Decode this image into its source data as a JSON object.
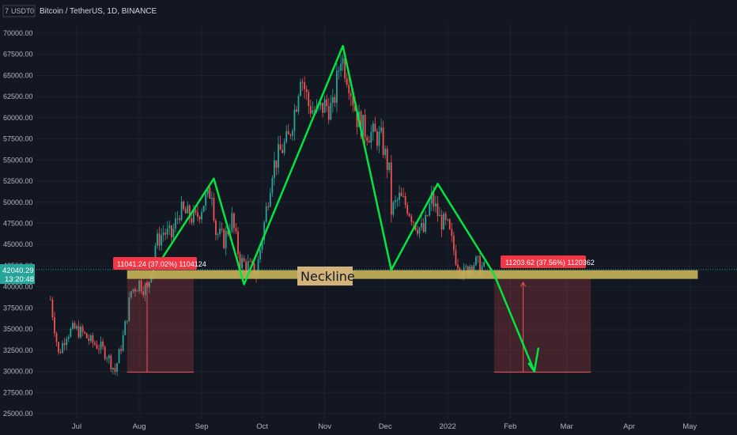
{
  "header": {
    "title": "Bitcoin / TetherUS, 1D, BINANCE",
    "currency_label": "USDT",
    "currency_prefix": "7",
    "currency_suffix": "0"
  },
  "price_tag": {
    "price": "42040.29",
    "countdown": "13:20:48"
  },
  "annotations": {
    "neckline_label": "Neckline",
    "left_box_label": "11041.24 (37.02%) 1104124",
    "right_box_label": "11203.62 (37.56%) 1120362"
  },
  "colors": {
    "background": "#131722",
    "bull": "#26a69a",
    "bear": "#ef5350",
    "pattern_line": "#00e640",
    "neckline": "#c8b45a",
    "target_box": "#ef5350",
    "label_red": "#f23645"
  },
  "chart_data": {
    "type": "candlestick",
    "title": "Bitcoin / TetherUS, 1D, BINANCE",
    "ylim": [
      25000,
      71500
    ],
    "yticks": [
      "70000.00",
      "67500.00",
      "65000.00",
      "62500.00",
      "60000.00",
      "57500.00",
      "55000.00",
      "52500.00",
      "50000.00",
      "47500.00",
      "45000.00",
      "42500.00",
      "40000.00",
      "37500.00",
      "35000.00",
      "32500.00",
      "30000.00",
      "27500.00",
      "25000.00"
    ],
    "xticks": [
      "Jul",
      "Aug",
      "Sep",
      "Oct",
      "Nov",
      "Dec",
      "2022",
      "Feb",
      "Mar",
      "Apr",
      "May"
    ],
    "price_path": [
      [
        "2021-06-18",
        38500
      ],
      [
        "2021-06-22",
        32000
      ],
      [
        "2021-06-26",
        34500
      ],
      [
        "2021-06-30",
        35000
      ],
      [
        "2021-07-04",
        34500
      ],
      [
        "2021-07-08",
        33500
      ],
      [
        "2021-07-12",
        33000
      ],
      [
        "2021-07-16",
        32000
      ],
      [
        "2021-07-20",
        30000
      ],
      [
        "2021-07-24",
        34000
      ],
      [
        "2021-07-28",
        39500
      ],
      [
        "2021-08-01",
        40500
      ],
      [
        "2021-08-05",
        39500
      ],
      [
        "2021-08-09",
        45000
      ],
      [
        "2021-08-13",
        46500
      ],
      [
        "2021-08-17",
        46000
      ],
      [
        "2021-08-21",
        49000
      ],
      [
        "2021-08-25",
        48500
      ],
      [
        "2021-08-29",
        48000
      ],
      [
        "2021-09-02",
        50000
      ],
      [
        "2021-09-06",
        51500
      ],
      [
        "2021-09-08",
        46500
      ],
      [
        "2021-09-12",
        45500
      ],
      [
        "2021-09-16",
        48000
      ],
      [
        "2021-09-20",
        43000
      ],
      [
        "2021-09-24",
        42500
      ],
      [
        "2021-09-28",
        41500
      ],
      [
        "2021-10-02",
        47500
      ],
      [
        "2021-10-06",
        54000
      ],
      [
        "2021-10-10",
        56000
      ],
      [
        "2021-10-14",
        57500
      ],
      [
        "2021-10-18",
        62000
      ],
      [
        "2021-10-20",
        65500
      ],
      [
        "2021-10-24",
        61500
      ],
      [
        "2021-10-28",
        60500
      ],
      [
        "2021-11-01",
        61500
      ],
      [
        "2021-11-05",
        61000
      ],
      [
        "2021-11-09",
        67500
      ],
      [
        "2021-11-13",
        64500
      ],
      [
        "2021-11-17",
        60000
      ],
      [
        "2021-11-21",
        58500
      ],
      [
        "2021-11-25",
        58000
      ],
      [
        "2021-11-29",
        57500
      ],
      [
        "2021-12-03",
        53500
      ],
      [
        "2021-12-04",
        49000
      ],
      [
        "2021-12-08",
        50500
      ],
      [
        "2021-12-12",
        49500
      ],
      [
        "2021-12-16",
        47500
      ],
      [
        "2021-12-20",
        46500
      ],
      [
        "2021-12-24",
        50500
      ],
      [
        "2021-12-28",
        48000
      ],
      [
        "2022-01-01",
        47000
      ],
      [
        "2022-01-05",
        43500
      ],
      [
        "2022-01-09",
        41500
      ],
      [
        "2022-01-13",
        43000
      ],
      [
        "2022-01-17",
        42500
      ],
      [
        "2022-01-19",
        42040
      ]
    ],
    "neckline": {
      "y": 41500,
      "x_start": "2021-07-26",
      "x_end": "2022-05-05"
    },
    "head_and_shoulders_path": [
      [
        "2021-08-10",
        42500
      ],
      [
        "2021-09-07",
        52800
      ],
      [
        "2021-09-22",
        40300
      ],
      [
        "2021-11-10",
        68500
      ],
      [
        "2021-12-04",
        42000
      ],
      [
        "2021-12-27",
        52200
      ],
      [
        "2022-01-24",
        41500
      ],
      [
        "2022-02-13",
        30000
      ]
    ],
    "target_arrow_head": [
      [
        "2022-02-10",
        31000
      ],
      [
        "2022-02-13",
        30000
      ],
      [
        "2022-02-15",
        32800
      ]
    ],
    "measure_boxes": [
      {
        "x_start": "2021-07-26",
        "x_end": "2021-08-28",
        "y_top": 41000,
        "y_bottom": 29900,
        "label": "11041.24 (37.02%) 1104124"
      },
      {
        "x_start": "2022-01-24",
        "x_end": "2022-03-13",
        "y_top": 41000,
        "y_bottom": 29900,
        "label": "11203.62 (37.56%) 1120362"
      }
    ]
  }
}
